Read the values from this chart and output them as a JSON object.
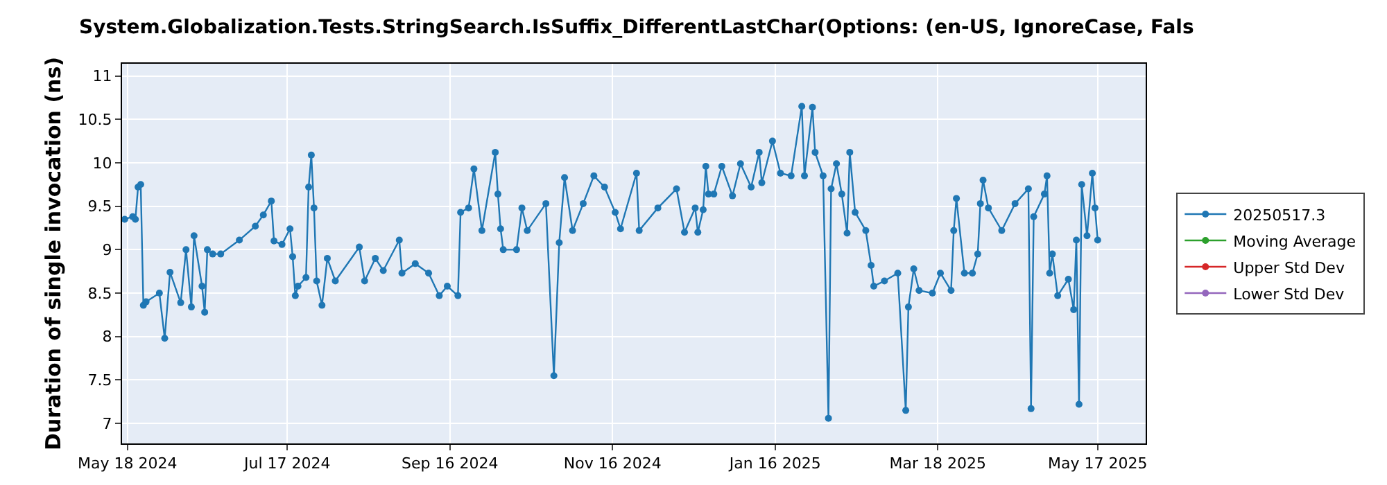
{
  "chart_data": {
    "type": "line",
    "title": "System.Globalization.Tests.StringSearch.IsSuffix_DifferentLastChar(Options: (en-US, IgnoreCase, Fals",
    "ylabel": "Duration of single invocation (ns)",
    "x": [
      "2024-05-17",
      "2024-05-20",
      "2024-05-21",
      "2024-05-22",
      "2024-05-23",
      "2024-05-24",
      "2024-05-25",
      "2024-05-30",
      "2024-06-01",
      "2024-06-03",
      "2024-06-07",
      "2024-06-09",
      "2024-06-11",
      "2024-06-12",
      "2024-06-15",
      "2024-06-16",
      "2024-06-17",
      "2024-06-19",
      "2024-06-22",
      "2024-06-29",
      "2024-07-05",
      "2024-07-08",
      "2024-07-11",
      "2024-07-12",
      "2024-07-15",
      "2024-07-18",
      "2024-07-19",
      "2024-07-20",
      "2024-07-21",
      "2024-07-24",
      "2024-07-25",
      "2024-07-26",
      "2024-07-27",
      "2024-07-28",
      "2024-07-30",
      "2024-08-01",
      "2024-08-04",
      "2024-08-13",
      "2024-08-15",
      "2024-08-19",
      "2024-08-22",
      "2024-08-28",
      "2024-08-29",
      "2024-09-03",
      "2024-09-08",
      "2024-09-12",
      "2024-09-15",
      "2024-09-19",
      "2024-09-20",
      "2024-09-23",
      "2024-09-25",
      "2024-09-28",
      "2024-10-03",
      "2024-10-04",
      "2024-10-05",
      "2024-10-06",
      "2024-10-11",
      "2024-10-13",
      "2024-10-15",
      "2024-10-22",
      "2024-10-25",
      "2024-10-27",
      "2024-10-29",
      "2024-11-01",
      "2024-11-05",
      "2024-11-09",
      "2024-11-13",
      "2024-11-17",
      "2024-11-19",
      "2024-11-25",
      "2024-11-26",
      "2024-12-03",
      "2024-12-10",
      "2024-12-13",
      "2024-12-17",
      "2024-12-18",
      "2024-12-20",
      "2024-12-21",
      "2024-12-22",
      "2024-12-24",
      "2024-12-27",
      "2024-12-31",
      "2025-01-03",
      "2025-01-07",
      "2025-01-10",
      "2025-01-11",
      "2025-01-15",
      "2025-01-18",
      "2025-01-22",
      "2025-01-26",
      "2025-01-27",
      "2025-01-30",
      "2025-01-31",
      "2025-02-03",
      "2025-02-05",
      "2025-02-06",
      "2025-02-08",
      "2025-02-10",
      "2025-02-12",
      "2025-02-13",
      "2025-02-15",
      "2025-02-19",
      "2025-02-21",
      "2025-02-22",
      "2025-02-26",
      "2025-03-03",
      "2025-03-06",
      "2025-03-07",
      "2025-03-09",
      "2025-03-11",
      "2025-03-16",
      "2025-03-19",
      "2025-03-23",
      "2025-03-24",
      "2025-03-25",
      "2025-03-28",
      "2025-03-31",
      "2025-04-02",
      "2025-04-03",
      "2025-04-04",
      "2025-04-06",
      "2025-04-11",
      "2025-04-16",
      "2025-04-21",
      "2025-04-22",
      "2025-04-23",
      "2025-04-27",
      "2025-04-28",
      "2025-04-29",
      "2025-04-30",
      "2025-05-02",
      "2025-05-06",
      "2025-05-08",
      "2025-05-09",
      "2025-05-10",
      "2025-05-11",
      "2025-05-13",
      "2025-05-15",
      "2025-05-16",
      "2025-05-17"
    ],
    "series": [
      {
        "name": "20250517.3",
        "color": "#1f77b4",
        "values": [
          9.35,
          9.38,
          9.35,
          9.72,
          9.75,
          8.36,
          8.4,
          8.5,
          7.98,
          8.74,
          8.39,
          9.0,
          8.34,
          9.16,
          8.58,
          8.28,
          9.0,
          8.95,
          8.95,
          9.11,
          9.27,
          9.4,
          9.56,
          9.1,
          9.06,
          9.24,
          8.92,
          8.47,
          8.58,
          8.68,
          9.72,
          10.09,
          9.48,
          8.64,
          8.36,
          8.9,
          8.64,
          9.03,
          8.64,
          8.9,
          8.76,
          9.11,
          8.73,
          8.84,
          8.73,
          8.47,
          8.58,
          8.47,
          9.43,
          9.48,
          9.93,
          9.22,
          10.12,
          9.64,
          9.24,
          9.0,
          9.0,
          9.48,
          9.22,
          9.53,
          7.55,
          9.08,
          9.83,
          9.22,
          9.53,
          9.85,
          9.72,
          9.43,
          9.24,
          9.88,
          9.22,
          9.48,
          9.7,
          9.2,
          9.48,
          9.2,
          9.46,
          9.96,
          9.64,
          9.64,
          9.96,
          9.62,
          9.99,
          9.72,
          10.12,
          9.77,
          10.25,
          9.88,
          9.85,
          10.65,
          9.85,
          10.64,
          10.12,
          9.85,
          7.06,
          9.7,
          9.99,
          9.64,
          9.19,
          10.12,
          9.43,
          9.22,
          8.82,
          8.58,
          8.64,
          8.73,
          7.15,
          8.34,
          8.78,
          8.53,
          8.5,
          8.73,
          8.53,
          9.22,
          9.59,
          8.73,
          8.73,
          8.95,
          9.53,
          9.8,
          9.48,
          9.22,
          9.53,
          9.7,
          7.17,
          9.38,
          9.64,
          9.85,
          8.73,
          8.95,
          8.47,
          8.66,
          8.31,
          9.11,
          7.22,
          9.75,
          9.16,
          9.88,
          9.48,
          9.11
        ]
      },
      {
        "name": "Moving Average",
        "color": "#2ca02c",
        "values": [
          null,
          null,
          null,
          null,
          null,
          null,
          null,
          null,
          null,
          null,
          null,
          null,
          null,
          null,
          null,
          null,
          null,
          null,
          null,
          null,
          null,
          null,
          null,
          null,
          null,
          null,
          null,
          null,
          null,
          null,
          null,
          null,
          null,
          null,
          null,
          null,
          null,
          null,
          null,
          null,
          null,
          null,
          null,
          null,
          null,
          null,
          null,
          null,
          null,
          null,
          null,
          null,
          null,
          null,
          null,
          null,
          null,
          null,
          null,
          null,
          null,
          null,
          null,
          null,
          null,
          null,
          null,
          null,
          null,
          null,
          null,
          null,
          null,
          null,
          null,
          null,
          null,
          null,
          null,
          null,
          null,
          null,
          null,
          null,
          null,
          null,
          null,
          null,
          null,
          null,
          null,
          null,
          null,
          null,
          null,
          null,
          null,
          null,
          null,
          null,
          null,
          null,
          null,
          null,
          null,
          null,
          null,
          null,
          null,
          null,
          null,
          null,
          null,
          null,
          null,
          null,
          null,
          null,
          null,
          null,
          null,
          null,
          null,
          null,
          null,
          null,
          null,
          null,
          null,
          null,
          null,
          null,
          null,
          null,
          null,
          null,
          null,
          null,
          null,
          null
        ]
      },
      {
        "name": "Upper Std Dev",
        "color": "#d62728",
        "values": [
          null,
          null,
          null,
          null,
          null,
          null,
          null,
          null,
          null,
          null,
          null,
          null,
          null,
          null,
          null,
          null,
          null,
          null,
          null,
          null,
          null,
          null,
          null,
          null,
          null,
          null,
          null,
          null,
          null,
          null,
          null,
          null,
          null,
          null,
          null,
          null,
          null,
          null,
          null,
          null,
          null,
          null,
          null,
          null,
          null,
          null,
          null,
          null,
          null,
          null,
          null,
          null,
          null,
          null,
          null,
          null,
          null,
          null,
          null,
          null,
          null,
          null,
          null,
          null,
          null,
          null,
          null,
          null,
          null,
          null,
          null,
          null,
          null,
          null,
          null,
          null,
          null,
          null,
          null,
          null,
          null,
          null,
          null,
          null,
          null,
          null,
          null,
          null,
          null,
          null,
          null,
          null,
          null,
          null,
          null,
          null,
          null,
          null,
          null,
          null,
          null,
          null,
          null,
          null,
          null,
          null,
          null,
          null,
          null,
          null,
          null,
          null,
          null,
          null,
          null,
          null,
          null,
          null,
          null,
          null,
          null,
          null,
          null,
          null,
          null,
          null,
          null,
          null,
          null,
          null,
          null,
          null,
          null,
          null,
          null,
          null,
          null,
          null,
          null,
          null
        ]
      },
      {
        "name": "Lower Std Dev",
        "color": "#9467bd",
        "values": [
          null,
          null,
          null,
          null,
          null,
          null,
          null,
          null,
          null,
          null,
          null,
          null,
          null,
          null,
          null,
          null,
          null,
          null,
          null,
          null,
          null,
          null,
          null,
          null,
          null,
          null,
          null,
          null,
          null,
          null,
          null,
          null,
          null,
          null,
          null,
          null,
          null,
          null,
          null,
          null,
          null,
          null,
          null,
          null,
          null,
          null,
          null,
          null,
          null,
          null,
          null,
          null,
          null,
          null,
          null,
          null,
          null,
          null,
          null,
          null,
          null,
          null,
          null,
          null,
          null,
          null,
          null,
          null,
          null,
          null,
          null,
          null,
          null,
          null,
          null,
          null,
          null,
          null,
          null,
          null,
          null,
          null,
          null,
          null,
          null,
          null,
          null,
          null,
          null,
          null,
          null,
          null,
          null,
          null,
          null,
          null,
          null,
          null,
          null,
          null,
          null,
          null,
          null,
          null,
          null,
          null,
          null,
          null,
          null,
          null,
          null,
          null,
          null,
          null,
          null,
          null,
          null,
          null,
          null,
          null,
          null,
          null,
          null,
          null,
          null,
          null,
          null,
          null,
          null,
          null,
          null,
          null,
          null,
          null,
          null,
          null,
          null,
          null,
          null,
          null
        ]
      }
    ],
    "xlim": [
      "2024-05-16",
      "2025-06-04"
    ],
    "xticks": [
      {
        "value": "2024-05-18",
        "label": "May 18 2024"
      },
      {
        "value": "2024-07-17",
        "label": "Jul 17 2024"
      },
      {
        "value": "2024-09-16",
        "label": "Sep 16 2024"
      },
      {
        "value": "2024-11-16",
        "label": "Nov 16 2024"
      },
      {
        "value": "2025-01-16",
        "label": "Jan 16 2025"
      },
      {
        "value": "2025-03-18",
        "label": "Mar 18 2025"
      },
      {
        "value": "2025-05-17",
        "label": "May 17 2025"
      }
    ],
    "ylim": [
      6.77,
      11.14
    ],
    "yticks": [
      7,
      7.5,
      8,
      8.5,
      9,
      9.5,
      10,
      10.5,
      11
    ],
    "grid": true,
    "legend": "right",
    "marker": "circle",
    "line_style": "solid"
  }
}
